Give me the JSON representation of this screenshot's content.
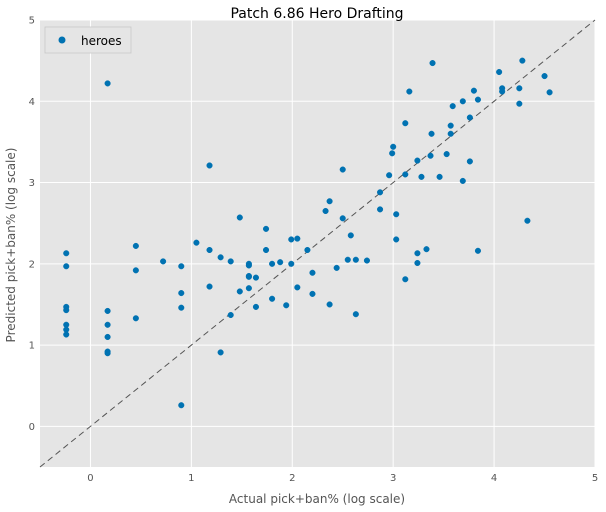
{
  "chart_data": {
    "type": "scatter",
    "title": "Patch 6.86 Hero Drafting",
    "xlabel": "Actual pick+ban% (log scale)",
    "ylabel": "Predicted pick+ban% (log scale)",
    "xlim": [
      -0.5,
      5
    ],
    "ylim": [
      -0.5,
      5
    ],
    "xticks": [
      "0",
      "1",
      "2",
      "3",
      "4",
      "5"
    ],
    "yticks": [
      "0",
      "1",
      "2",
      "3",
      "4",
      "5"
    ],
    "grid": true,
    "legend_position": "top-left",
    "reference_line": "y = x (dashed)",
    "series": [
      {
        "name": "heroes",
        "color": "#0072b2",
        "points": [
          [
            -0.24,
            2.13
          ],
          [
            -0.24,
            1.97
          ],
          [
            -0.24,
            1.47
          ],
          [
            -0.24,
            1.43
          ],
          [
            -0.24,
            1.25
          ],
          [
            -0.24,
            1.19
          ],
          [
            -0.24,
            1.13
          ],
          [
            0.17,
            4.22
          ],
          [
            0.17,
            1.42
          ],
          [
            0.17,
            1.25
          ],
          [
            0.17,
            1.1
          ],
          [
            0.17,
            0.92
          ],
          [
            0.17,
            0.9
          ],
          [
            0.45,
            2.22
          ],
          [
            0.45,
            1.92
          ],
          [
            0.45,
            1.33
          ],
          [
            0.72,
            2.03
          ],
          [
            0.9,
            1.97
          ],
          [
            0.9,
            1.64
          ],
          [
            0.9,
            1.46
          ],
          [
            0.9,
            0.26
          ],
          [
            1.05,
            2.26
          ],
          [
            1.18,
            3.21
          ],
          [
            1.18,
            2.17
          ],
          [
            1.18,
            1.72
          ],
          [
            1.29,
            2.08
          ],
          [
            1.29,
            0.91
          ],
          [
            1.39,
            2.03
          ],
          [
            1.39,
            1.37
          ],
          [
            1.48,
            2.57
          ],
          [
            1.48,
            1.66
          ],
          [
            1.57,
            2.0
          ],
          [
            1.57,
            1.98
          ],
          [
            1.57,
            1.85
          ],
          [
            1.57,
            1.84
          ],
          [
            1.57,
            1.7
          ],
          [
            1.64,
            1.83
          ],
          [
            1.64,
            1.47
          ],
          [
            1.74,
            2.43
          ],
          [
            1.74,
            2.17
          ],
          [
            1.8,
            2.0
          ],
          [
            1.8,
            1.57
          ],
          [
            1.88,
            2.02
          ],
          [
            1.94,
            1.49
          ],
          [
            1.99,
            2.3
          ],
          [
            1.99,
            2.0
          ],
          [
            2.05,
            2.31
          ],
          [
            2.05,
            1.71
          ],
          [
            2.15,
            2.17
          ],
          [
            2.2,
            1.89
          ],
          [
            2.2,
            1.63
          ],
          [
            2.33,
            2.65
          ],
          [
            2.37,
            2.77
          ],
          [
            2.37,
            1.5
          ],
          [
            2.44,
            1.95
          ],
          [
            2.5,
            3.16
          ],
          [
            2.5,
            2.56
          ],
          [
            2.55,
            2.05
          ],
          [
            2.58,
            2.35
          ],
          [
            2.63,
            2.05
          ],
          [
            2.63,
            1.38
          ],
          [
            2.74,
            2.04
          ],
          [
            2.87,
            2.88
          ],
          [
            2.87,
            2.67
          ],
          [
            2.96,
            3.09
          ],
          [
            2.99,
            3.36
          ],
          [
            3.0,
            3.44
          ],
          [
            3.03,
            2.61
          ],
          [
            3.03,
            2.3
          ],
          [
            3.12,
            3.73
          ],
          [
            3.12,
            3.1
          ],
          [
            3.12,
            1.81
          ],
          [
            3.16,
            4.12
          ],
          [
            3.24,
            3.27
          ],
          [
            3.24,
            2.13
          ],
          [
            3.24,
            2.01
          ],
          [
            3.28,
            3.07
          ],
          [
            3.33,
            2.18
          ],
          [
            3.37,
            3.33
          ],
          [
            3.38,
            3.6
          ],
          [
            3.39,
            4.47
          ],
          [
            3.46,
            3.07
          ],
          [
            3.53,
            3.35
          ],
          [
            3.57,
            3.7
          ],
          [
            3.57,
            3.6
          ],
          [
            3.59,
            3.94
          ],
          [
            3.69,
            4.0
          ],
          [
            3.69,
            3.02
          ],
          [
            3.76,
            3.8
          ],
          [
            3.76,
            3.26
          ],
          [
            3.8,
            4.13
          ],
          [
            3.84,
            4.02
          ],
          [
            3.84,
            2.16
          ],
          [
            4.05,
            4.36
          ],
          [
            4.08,
            4.16
          ],
          [
            4.08,
            4.12
          ],
          [
            4.25,
            4.16
          ],
          [
            4.25,
            3.97
          ],
          [
            4.28,
            4.5
          ],
          [
            4.33,
            2.53
          ],
          [
            4.5,
            4.31
          ],
          [
            4.55,
            4.11
          ]
        ]
      }
    ]
  }
}
